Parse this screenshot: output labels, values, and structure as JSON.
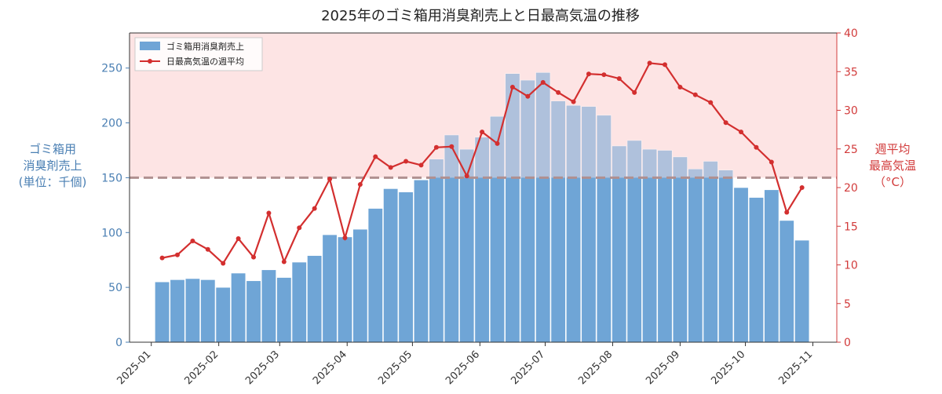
{
  "chart_data": {
    "type": "bar+line",
    "title": "2025年のゴミ箱用消臭剤売上と日最高気温の推移",
    "x_ticks": [
      "2025-01",
      "2025-02",
      "2025-03",
      "2025-04",
      "2025-05",
      "2025-06",
      "2025-07",
      "2025-08",
      "2025-09",
      "2025-10",
      "2025-11"
    ],
    "bar_series": {
      "name": "ゴミ箱用消臭剤売上",
      "color": "#6fa5d6",
      "weeks": [
        "2025-01-06",
        "2025-01-13",
        "2025-01-20",
        "2025-01-27",
        "2025-02-03",
        "2025-02-10",
        "2025-02-17",
        "2025-02-24",
        "2025-03-03",
        "2025-03-10",
        "2025-03-17",
        "2025-03-24",
        "2025-03-31",
        "2025-04-07",
        "2025-04-14",
        "2025-04-21",
        "2025-04-28",
        "2025-05-05",
        "2025-05-12",
        "2025-05-19",
        "2025-05-26",
        "2025-06-02",
        "2025-06-09",
        "2025-06-16",
        "2025-06-23",
        "2025-06-30",
        "2025-07-07",
        "2025-07-14",
        "2025-07-21",
        "2025-07-28",
        "2025-08-04",
        "2025-08-11",
        "2025-08-18",
        "2025-08-25",
        "2025-09-01",
        "2025-09-08",
        "2025-09-15",
        "2025-09-22",
        "2025-09-29",
        "2025-10-06",
        "2025-10-13",
        "2025-10-20",
        "2025-10-27"
      ],
      "values": [
        55,
        57,
        58,
        57,
        50,
        63,
        56,
        66,
        59,
        73,
        79,
        98,
        96,
        103,
        122,
        140,
        137,
        148,
        167,
        189,
        176,
        187,
        206,
        245,
        239,
        246,
        220,
        216,
        215,
        207,
        179,
        184,
        176,
        175,
        169,
        158,
        165,
        157,
        141,
        132,
        139,
        111,
        93
      ]
    },
    "line_series": {
      "name": "日最高気温の週平均",
      "color": "#d32f2f",
      "values": [
        10.9,
        11.3,
        13.1,
        12.0,
        10.2,
        13.4,
        11.0,
        16.7,
        10.4,
        14.8,
        17.3,
        21.1,
        13.5,
        20.4,
        24.0,
        22.6,
        23.4,
        22.9,
        25.2,
        25.3,
        21.5,
        27.2,
        25.7,
        33.0,
        31.8,
        33.6,
        32.3,
        31.1,
        34.7,
        34.6,
        34.1,
        32.3,
        36.1,
        35.9,
        33.0,
        32.0,
        31.0,
        28.4,
        27.2,
        25.2,
        23.3,
        16.8,
        20.0
      ]
    },
    "y_left": {
      "label": "ゴミ箱用\n消臭剤売上\n(単位：千個)",
      "ylim": [
        0,
        282
      ],
      "ticks": [
        0,
        50,
        100,
        150,
        200,
        250
      ],
      "color": "#4a7fb3"
    },
    "y_right": {
      "label": "週平均\n最高気温\n（°C）",
      "ylim": [
        0,
        40
      ],
      "ticks": [
        0,
        5,
        10,
        15,
        20,
        25,
        30,
        35,
        40
      ],
      "color": "#d23b3b"
    },
    "threshold": {
      "value": 150,
      "style": "dashed",
      "color": "#b09090"
    },
    "shaded_region": {
      "from": 150,
      "to": 282,
      "color": "#fde4e4"
    },
    "grid": false,
    "legend": {
      "placement": "top-left"
    }
  }
}
